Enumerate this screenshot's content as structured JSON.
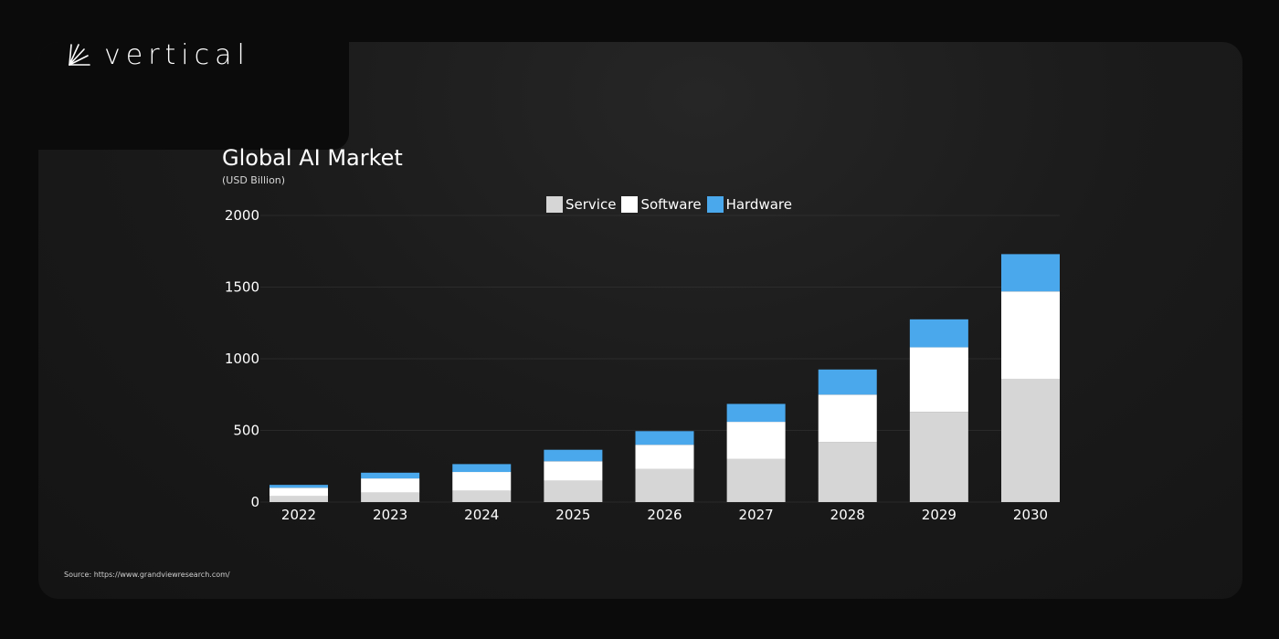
{
  "brand": {
    "name": "vertical",
    "logo_icon": "vertical-sunburst-mark"
  },
  "source": "Source: https://www.grandviewresearch.com/",
  "chart_data": {
    "type": "bar",
    "stacked": true,
    "title": "Global AI Market",
    "subtitle": "(USD Billion)",
    "xlabel": "",
    "ylabel": "",
    "categories": [
      "2022",
      "2023",
      "2024",
      "2025",
      "2026",
      "2027",
      "2028",
      "2029",
      "2030"
    ],
    "series": [
      {
        "name": "Service",
        "color": "#d6d6d6",
        "values": [
          40,
          65,
          80,
          150,
          230,
          300,
          420,
          630,
          860
        ]
      },
      {
        "name": "Software",
        "color": "#ffffff",
        "values": [
          60,
          100,
          130,
          135,
          170,
          260,
          330,
          450,
          610
        ]
      },
      {
        "name": "Hardware",
        "color": "#4aa8ec",
        "values": [
          20,
          40,
          55,
          80,
          95,
          125,
          175,
          195,
          260
        ]
      }
    ],
    "ylim": [
      0,
      2000
    ],
    "yticks": [
      "0",
      "500",
      "1000",
      "1500",
      "2000"
    ],
    "grid": true,
    "legend_position": "top-center"
  }
}
